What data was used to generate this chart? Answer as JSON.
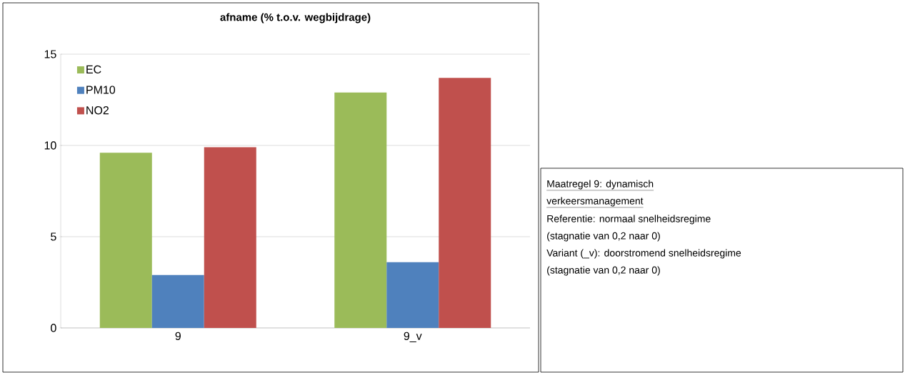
{
  "chart_data": {
    "type": "bar",
    "title": "afname (% t.o.v. wegbijdrage)",
    "categories": [
      "9",
      "9_v"
    ],
    "series": [
      {
        "name": "EC",
        "color": "#9bbb59",
        "values": [
          9.6,
          12.9
        ]
      },
      {
        "name": "PM10",
        "color": "#4f81bd",
        "values": [
          2.9,
          3.6
        ]
      },
      {
        "name": "NO2",
        "color": "#c0504d",
        "values": [
          9.9,
          13.7
        ]
      }
    ],
    "ylim": [
      0,
      15
    ],
    "yticks": [
      0,
      5,
      10,
      15
    ],
    "grid": "y",
    "legend": "top left",
    "annotations": [
      "Maatregel 9: dynamisch",
      "verkeersmanagement",
      "Referentie: normaal snelheidsregime",
      "(stagnatie van 0,2 naar 0)",
      "Variant (_v): doorstromend snelheidsregime",
      "(stagnatie van 0,2 naar 0)"
    ]
  }
}
